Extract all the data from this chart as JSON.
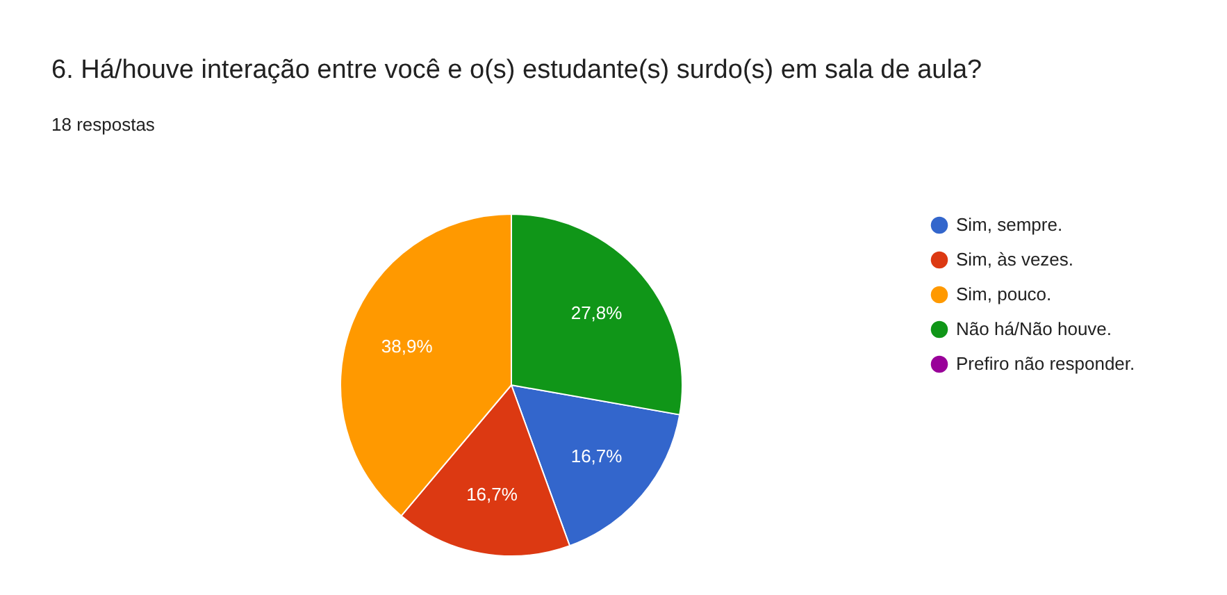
{
  "chart_data": {
    "type": "pie",
    "title": "6. Há/houve interação entre você e o(s) estudante(s) surdo(s) em sala de aula?",
    "subtitle": "18 respostas",
    "categories": [
      "Sim, sempre.",
      "Sim, às vezes.",
      "Sim, pouco.",
      "Não há/Não houve.",
      "Prefiro não responder."
    ],
    "values": [
      16.7,
      16.7,
      38.9,
      27.8,
      0
    ],
    "colors": [
      "#3366cc",
      "#dc3912",
      "#ff9900",
      "#109618",
      "#990099"
    ],
    "value_labels": [
      "16,7%",
      "16,7%",
      "38,9%",
      "27,8%",
      null
    ],
    "legend": "right"
  }
}
